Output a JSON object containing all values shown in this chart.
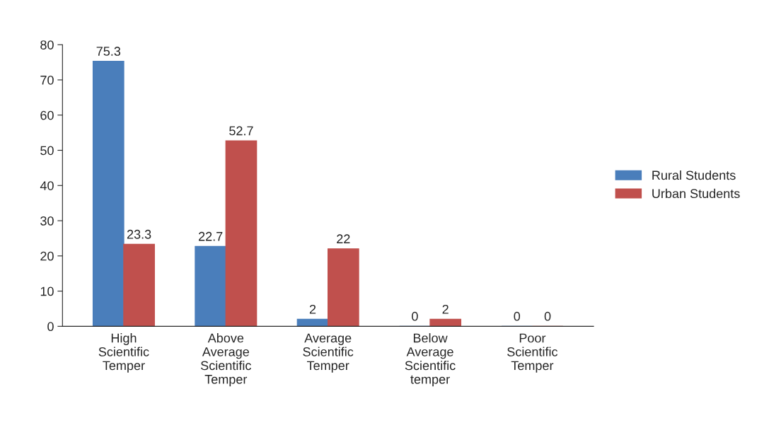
{
  "chart_data": {
    "type": "bar",
    "categories": [
      "High\nScientific\nTemper",
      "Above\nAverage\nScientific\nTemper",
      "Average\nScientific\nTemper",
      "Below\nAverage\nScientific\ntemper",
      "Poor\nScientific\nTemper"
    ],
    "series": [
      {
        "name": "Rural Students",
        "color": "#4a7ebb",
        "values": [
          75.3,
          22.7,
          2,
          0,
          0
        ]
      },
      {
        "name": "Urban Students",
        "color": "#c0504d",
        "values": [
          23.3,
          52.7,
          22,
          2,
          0
        ]
      }
    ],
    "ylim": [
      0,
      80
    ],
    "yticks": [
      0,
      10,
      20,
      30,
      40,
      50,
      60,
      70,
      80
    ],
    "data_labels": true,
    "grid": false,
    "legend": "right"
  }
}
